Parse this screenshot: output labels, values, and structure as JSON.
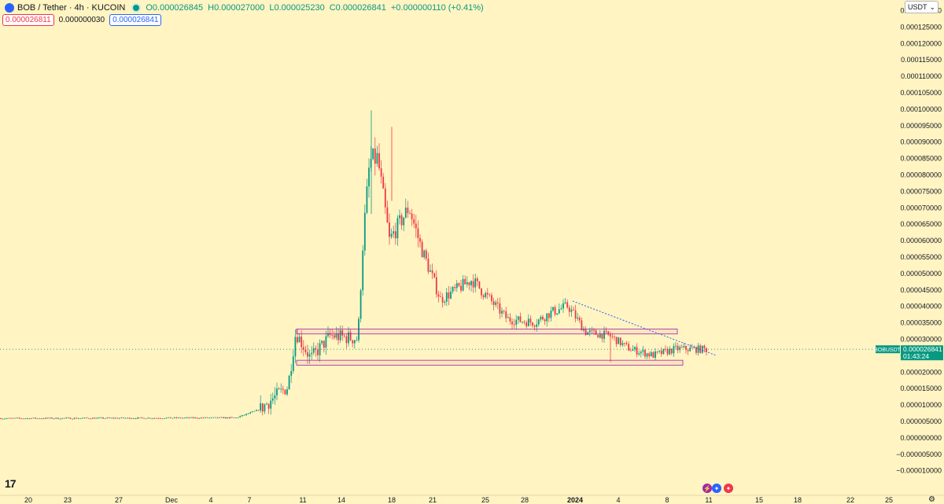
{
  "header": {
    "symbol_title": "BOB / Tether · 4h · KUCOIN",
    "ohlc": {
      "open_label": "O",
      "open": "0.000026845",
      "high_label": "H",
      "high": "0.000027000",
      "low_label": "L",
      "low": "0.000025230",
      "close_label": "C",
      "close": "0.000026841",
      "change": "+0.000000110 (+0.41%)"
    },
    "sell_price": "0.000026811",
    "spread": "0.000000030",
    "buy_price": "0.000026841"
  },
  "currency_selector": {
    "label": "USDT"
  },
  "last_price_tag": {
    "symbol": "BOBUSDT",
    "price": "0.000026841",
    "countdown": "01:43:24"
  },
  "colors": {
    "background": "#fff4c2",
    "up": "#089981",
    "down": "#f23645",
    "zone_border": "#9c27b0",
    "trendline": "#2962ff"
  },
  "icons": [
    "tradingview-logo-icon",
    "lightning-event-icon",
    "us-flag-event-icon",
    "us-flag-event-icon",
    "gear-settings-icon"
  ],
  "chart_data": {
    "type": "candlestick",
    "title": "BOB / Tether · 4h · KUCOIN",
    "ylim": [
      -1.2e-05,
      0.000131
    ],
    "y_scale": "linear",
    "grid": false,
    "y_ticks": [
      "0.000130000",
      "0.000125000",
      "0.000120000",
      "0.000115000",
      "0.000110000",
      "0.000105000",
      "0.000100000",
      "0.000095000",
      "0.000090000",
      "0.000085000",
      "0.000080000",
      "0.000075000",
      "0.000070000",
      "0.000065000",
      "0.000060000",
      "0.000055000",
      "0.000050000",
      "0.000045000",
      "0.000040000",
      "0.000035000",
      "0.000030000",
      "0.000025000",
      "0.000020000",
      "0.000015000",
      "0.000010000",
      "0.000005000",
      "0.000000000",
      "−0.000005000",
      "−0.000010000"
    ],
    "x_ticks": [
      "20",
      "23",
      "27",
      "Dec",
      "4",
      "7",
      "11",
      "14",
      "18",
      "21",
      "25",
      "28",
      "2024",
      "4",
      "8",
      "11",
      "15",
      "18",
      "22",
      "25"
    ],
    "x_tick_bold": "2024",
    "zones": [
      {
        "from_date": "Dec 11",
        "to_date": "Jan 9",
        "low": 3.15e-05,
        "high": 3.3e-05
      },
      {
        "from_date": "Dec 11",
        "to_date": "Jan 9",
        "low": 2.2e-05,
        "high": 2.35e-05
      }
    ],
    "trendline": {
      "from": [
        "Dec 31",
        4.15e-05
      ],
      "to": [
        "Jan 11",
        2.5e-05
      ]
    },
    "last_price": 2.6841e-05
  }
}
